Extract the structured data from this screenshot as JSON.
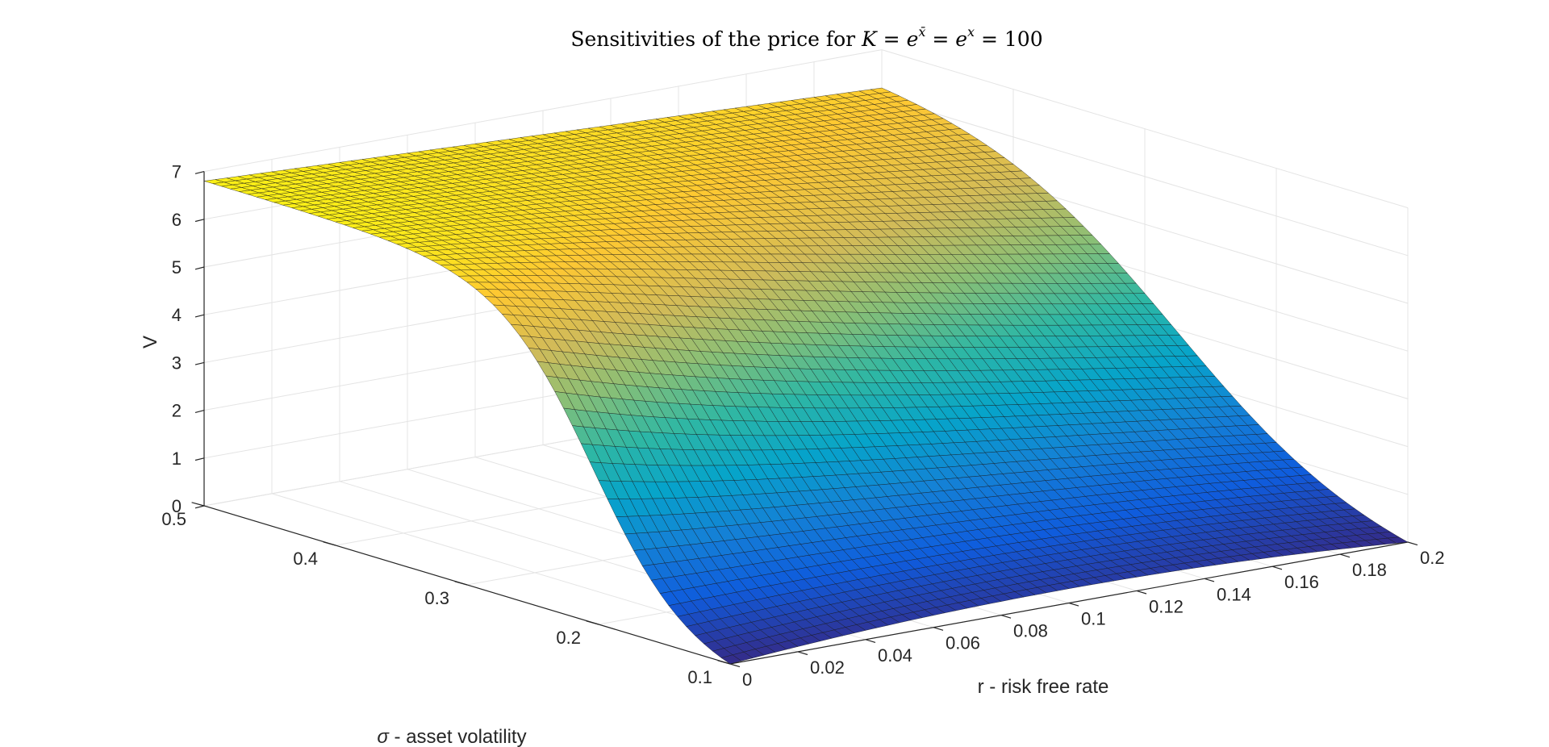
{
  "chart_data": {
    "type": "surface",
    "title": {
      "prefix": "Sensitivities of the price for ",
      "k": "K",
      "eq1": " = ",
      "e1": "e",
      "sup1": "x̄",
      "eq2": " = ",
      "e2": "e",
      "sup2": "x",
      "eq3": " = ",
      "val": "100"
    },
    "xlabel": "r - risk free rate",
    "ylabel": {
      "sym": "σ",
      "text": " - asset volatility"
    },
    "zlabel": "V",
    "xlim": [
      0,
      0.2
    ],
    "ylim": [
      0.1,
      0.5
    ],
    "zlim": [
      0,
      7
    ],
    "x_ticks": [
      "0",
      "0.02",
      "0.04",
      "0.06",
      "0.08",
      "0.1",
      "0.12",
      "0.14",
      "0.16",
      "0.18",
      "0.2"
    ],
    "y_ticks": [
      "0.1",
      "0.2",
      "0.3",
      "0.4",
      "0.5"
    ],
    "z_ticks": [
      "0",
      "1",
      "2",
      "3",
      "4",
      "5",
      "6",
      "7"
    ],
    "grid": true,
    "colormap": "parula",
    "colors": [
      "#352a87",
      "#0f5cdd",
      "#1481d6",
      "#06a4ca",
      "#2eb7a4",
      "#87bf77",
      "#d1bb59",
      "#fec832",
      "#f9fb0e"
    ],
    "surface_values": {
      "corner_r0_s0.1": 0.0,
      "corner_r0.2_s0.1": 0.0,
      "corner_r0_s0.5": 6.8,
      "corner_r0.2_s0.5": 6.2,
      "min_near_r0.1_s0.1": 0.3
    }
  }
}
